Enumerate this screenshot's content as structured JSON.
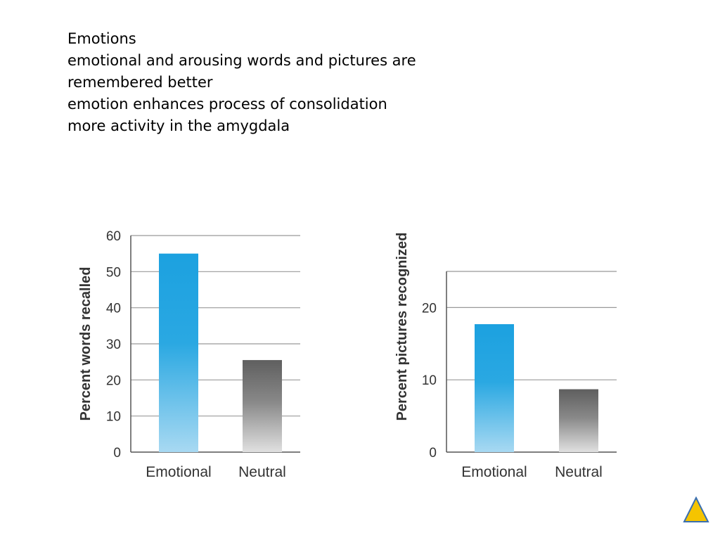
{
  "slide": {
    "lines": [
      "Emotions",
      "emotional and arousing words and pictures are",
      "remembered better",
      "emotion enhances process of consolidation",
      "more activity in the amygdala"
    ]
  },
  "chart_data": [
    {
      "type": "bar",
      "categories": [
        "Emotional",
        "Neutral"
      ],
      "values": [
        55,
        25.5
      ],
      "ylabel": "Percent words recalled",
      "ylim": [
        0,
        60
      ],
      "yticks": [
        0,
        10,
        20,
        30,
        40,
        50,
        60
      ],
      "grid": true,
      "bar_gradients": [
        {
          "top": "#1ca1e0",
          "mid": "#2aa8e2",
          "bottom": "#a8d9f2"
        },
        {
          "top": "#5f5f5f",
          "mid": "#888888",
          "bottom": "#e0e0e0"
        }
      ]
    },
    {
      "type": "bar",
      "categories": [
        "Emotional",
        "Neutral"
      ],
      "values": [
        17.7,
        8.7
      ],
      "ylabel": "Percent pictures recognized",
      "ylim": [
        0,
        25
      ],
      "yticks": [
        0,
        10,
        20
      ],
      "grid": true,
      "bar_gradients": [
        {
          "top": "#1ca1e0",
          "mid": "#2aa8e2",
          "bottom": "#a8d9f2"
        },
        {
          "top": "#5f5f5f",
          "mid": "#888888",
          "bottom": "#e0e0e0"
        }
      ]
    }
  ],
  "colors": {
    "grid": "#999999",
    "axis": "#555555",
    "tick_text": "#333333",
    "nav_fill": "#f5c400",
    "nav_stroke": "#3a6fb0"
  },
  "icons": {
    "nav": "up-triangle-icon"
  }
}
